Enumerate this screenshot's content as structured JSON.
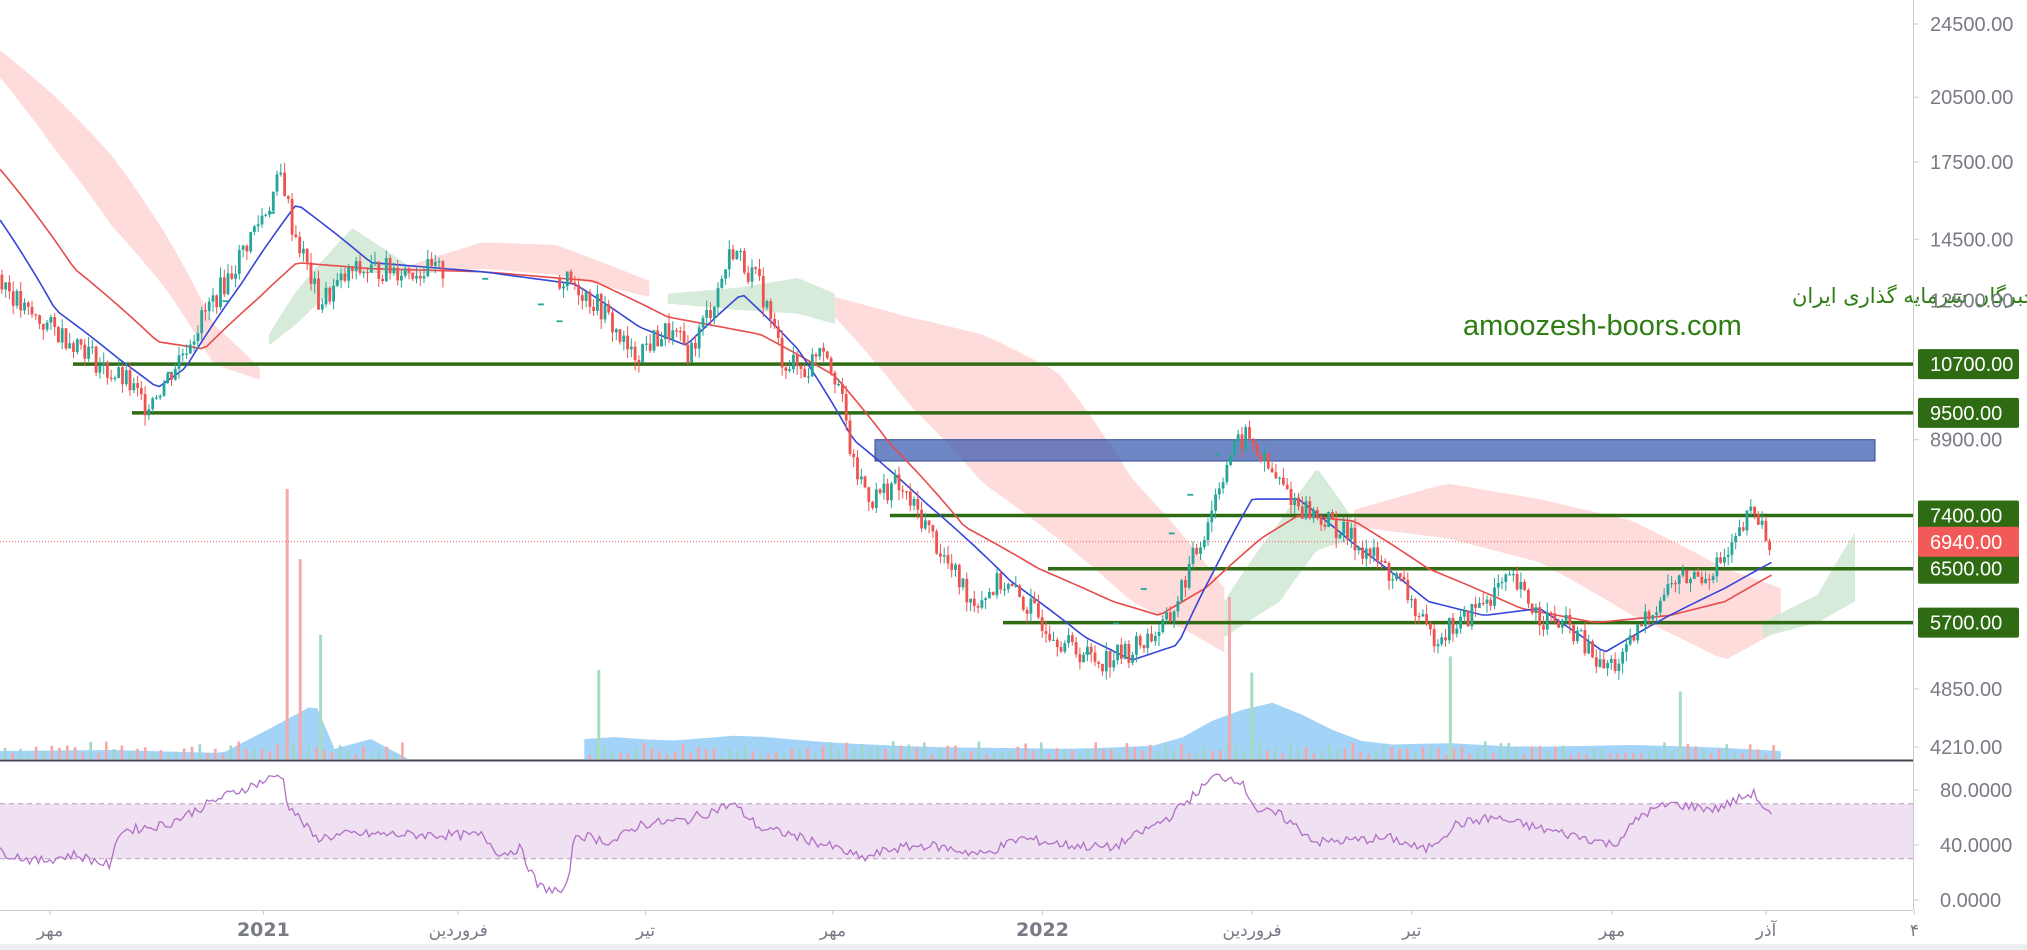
{
  "colors": {
    "up": "#26a69a",
    "down": "#ef5350",
    "support_line": "#2e6b12",
    "zone": "#3f5fb0",
    "ma_fast": "#3646d8",
    "ma_slow": "#e84a4a",
    "rsi": "#b070c6",
    "current_price": "#f25a5a",
    "cloud_bull": "#cfe8d2",
    "cloud_bear": "#ffd6d6",
    "volume_area": "#8cc8f5",
    "watermark": "#2e7d12"
  },
  "watermark": {
    "line1": "انجمن خبرگان سرمایه گذاری ایران",
    "line2": "amoozesh-boors.com"
  },
  "price_axis": {
    "scale": "log",
    "ticks": [
      "24500.00",
      "20500.00",
      "17500.00",
      "14500.00",
      "12500.00",
      "8900.00",
      "4850.00",
      "4210.00"
    ]
  },
  "rsi_axis": {
    "ticks": [
      "80.0000",
      "40.0000",
      "0.0000"
    ]
  },
  "time_axis": {
    "labels": [
      "مهر",
      "2021",
      "فروردین",
      "تیر",
      "مهر",
      "2022",
      "فروردین",
      "تیر",
      "مهر",
      "آذر",
      "۴"
    ]
  },
  "levels": [
    {
      "label": "10700.00",
      "value": 10700
    },
    {
      "label": "9500.00",
      "value": 9500
    },
    {
      "label": "7400.00",
      "value": 7400
    },
    {
      "label": "6500.00",
      "value": 6500
    },
    {
      "label": "5700.00",
      "value": 5700
    }
  ],
  "current_price": {
    "label": "6940.00",
    "value": 6940
  },
  "resistance_zone": {
    "low": 8450,
    "high": 8900
  },
  "chart_data": {
    "type": "candlestick",
    "y_scale": "log",
    "x_labels": [
      "مهر",
      "2021",
      "فروردین",
      "تیر",
      "مهر",
      "2022",
      "فروردین",
      "تیر",
      "مهر",
      "آذر"
    ],
    "price_anchors": [
      [
        0,
        13300
      ],
      [
        0.012,
        12200
      ],
      [
        0.03,
        11600
      ],
      [
        0.045,
        11200
      ],
      [
        0.055,
        10600
      ],
      [
        0.068,
        10250
      ],
      [
        0.078,
        9700
      ],
      [
        0.09,
        10300
      ],
      [
        0.105,
        11600
      ],
      [
        0.125,
        13400
      ],
      [
        0.145,
        15800
      ],
      [
        0.152,
        17000
      ],
      [
        0.157,
        15100
      ],
      [
        0.172,
        12400
      ],
      [
        0.19,
        13400
      ],
      [
        0.21,
        13500
      ],
      [
        0.24,
        13400
      ],
      [
        0.28,
        13300
      ],
      [
        0.31,
        13000
      ],
      [
        0.325,
        12200
      ],
      [
        0.34,
        10900
      ],
      [
        0.36,
        11600
      ],
      [
        0.372,
        11000
      ],
      [
        0.385,
        12500
      ],
      [
        0.395,
        14200
      ],
      [
        0.41,
        12900
      ],
      [
        0.422,
        10800
      ],
      [
        0.435,
        10500
      ],
      [
        0.443,
        11400
      ],
      [
        0.452,
        10200
      ],
      [
        0.46,
        8300
      ],
      [
        0.47,
        7700
      ],
      [
        0.482,
        8000
      ],
      [
        0.498,
        7300
      ],
      [
        0.512,
        6500
      ],
      [
        0.525,
        6000
      ],
      [
        0.54,
        6300
      ],
      [
        0.555,
        5900
      ],
      [
        0.575,
        5400
      ],
      [
        0.592,
        5200
      ],
      [
        0.608,
        5300
      ],
      [
        0.63,
        5700
      ],
      [
        0.648,
        7000
      ],
      [
        0.662,
        8500
      ],
      [
        0.672,
        9000
      ],
      [
        0.685,
        8200
      ],
      [
        0.7,
        7600
      ],
      [
        0.72,
        7200
      ],
      [
        0.74,
        6700
      ],
      [
        0.757,
        6200
      ],
      [
        0.77,
        5500
      ],
      [
        0.788,
        5700
      ],
      [
        0.803,
        6100
      ],
      [
        0.815,
        6300
      ],
      [
        0.83,
        5800
      ],
      [
        0.848,
        5600
      ],
      [
        0.863,
        5100
      ],
      [
        0.875,
        5200
      ],
      [
        0.888,
        5800
      ],
      [
        0.902,
        6300
      ],
      [
        0.918,
        6400
      ],
      [
        0.932,
        6700
      ],
      [
        0.945,
        7500
      ],
      [
        0.954,
        6940
      ]
    ],
    "ma_fast_anchors": [
      [
        0,
        15200
      ],
      [
        0.03,
        12200
      ],
      [
        0.065,
        10800
      ],
      [
        0.085,
        10100
      ],
      [
        0.1,
        10600
      ],
      [
        0.13,
        13000
      ],
      [
        0.16,
        15800
      ],
      [
        0.2,
        13700
      ],
      [
        0.26,
        13400
      ],
      [
        0.31,
        13000
      ],
      [
        0.345,
        11700
      ],
      [
        0.37,
        11200
      ],
      [
        0.4,
        12700
      ],
      [
        0.43,
        11100
      ],
      [
        0.46,
        8900
      ],
      [
        0.5,
        7600
      ],
      [
        0.545,
        6300
      ],
      [
        0.585,
        5500
      ],
      [
        0.61,
        5200
      ],
      [
        0.635,
        5400
      ],
      [
        0.655,
        6500
      ],
      [
        0.675,
        7700
      ],
      [
        0.7,
        7700
      ],
      [
        0.73,
        6900
      ],
      [
        0.77,
        6000
      ],
      [
        0.8,
        5800
      ],
      [
        0.83,
        5900
      ],
      [
        0.865,
        5300
      ],
      [
        0.9,
        5800
      ],
      [
        0.93,
        6200
      ],
      [
        0.955,
        6600
      ]
    ],
    "ma_slow_anchors": [
      [
        0,
        17200
      ],
      [
        0.04,
        13500
      ],
      [
        0.085,
        11300
      ],
      [
        0.11,
        11100
      ],
      [
        0.14,
        12600
      ],
      [
        0.16,
        13700
      ],
      [
        0.2,
        13500
      ],
      [
        0.26,
        13400
      ],
      [
        0.32,
        13100
      ],
      [
        0.36,
        12000
      ],
      [
        0.41,
        11500
      ],
      [
        0.45,
        10400
      ],
      [
        0.48,
        8800
      ],
      [
        0.52,
        7200
      ],
      [
        0.56,
        6500
      ],
      [
        0.6,
        6000
      ],
      [
        0.625,
        5800
      ],
      [
        0.65,
        6200
      ],
      [
        0.68,
        7000
      ],
      [
        0.7,
        7400
      ],
      [
        0.73,
        7300
      ],
      [
        0.77,
        6500
      ],
      [
        0.82,
        5900
      ],
      [
        0.86,
        5700
      ],
      [
        0.9,
        5800
      ],
      [
        0.93,
        6000
      ],
      [
        0.955,
        6400
      ]
    ],
    "rsi_anchors": [
      [
        0,
        35
      ],
      [
        0.02,
        28
      ],
      [
        0.04,
        33
      ],
      [
        0.06,
        25
      ],
      [
        0.064,
        50
      ],
      [
        0.09,
        55
      ],
      [
        0.12,
        75
      ],
      [
        0.145,
        88
      ],
      [
        0.152,
        92
      ],
      [
        0.155,
        70
      ],
      [
        0.17,
        45
      ],
      [
        0.19,
        48
      ],
      [
        0.26,
        47
      ],
      [
        0.27,
        33
      ],
      [
        0.28,
        38
      ],
      [
        0.29,
        10
      ],
      [
        0.305,
        5
      ],
      [
        0.31,
        48
      ],
      [
        0.33,
        42
      ],
      [
        0.345,
        55
      ],
      [
        0.37,
        58
      ],
      [
        0.395,
        70
      ],
      [
        0.41,
        52
      ],
      [
        0.425,
        48
      ],
      [
        0.45,
        38
      ],
      [
        0.465,
        30
      ],
      [
        0.48,
        37
      ],
      [
        0.5,
        40
      ],
      [
        0.53,
        33
      ],
      [
        0.55,
        45
      ],
      [
        0.575,
        40
      ],
      [
        0.6,
        38
      ],
      [
        0.63,
        60
      ],
      [
        0.655,
        90
      ],
      [
        0.668,
        88
      ],
      [
        0.678,
        65
      ],
      [
        0.69,
        62
      ],
      [
        0.71,
        42
      ],
      [
        0.75,
        45
      ],
      [
        0.768,
        36
      ],
      [
        0.785,
        55
      ],
      [
        0.805,
        60
      ],
      [
        0.83,
        52
      ],
      [
        0.855,
        45
      ],
      [
        0.87,
        40
      ],
      [
        0.885,
        62
      ],
      [
        0.9,
        70
      ],
      [
        0.925,
        66
      ],
      [
        0.945,
        78
      ],
      [
        0.955,
        60
      ]
    ],
    "rsi_band": [
      30,
      70
    ],
    "volume_spikes": [
      {
        "x": 0.154,
        "v": 1.0,
        "up": false
      },
      {
        "x": 0.161,
        "v": 0.74,
        "up": false
      },
      {
        "x": 0.172,
        "v": 0.46,
        "up": true
      },
      {
        "x": 0.322,
        "v": 0.33,
        "up": true
      },
      {
        "x": 0.662,
        "v": 0.6,
        "up": false
      },
      {
        "x": 0.674,
        "v": 0.32,
        "up": true
      },
      {
        "x": 0.781,
        "v": 0.38,
        "up": true
      },
      {
        "x": 0.905,
        "v": 0.25,
        "up": true
      }
    ]
  }
}
